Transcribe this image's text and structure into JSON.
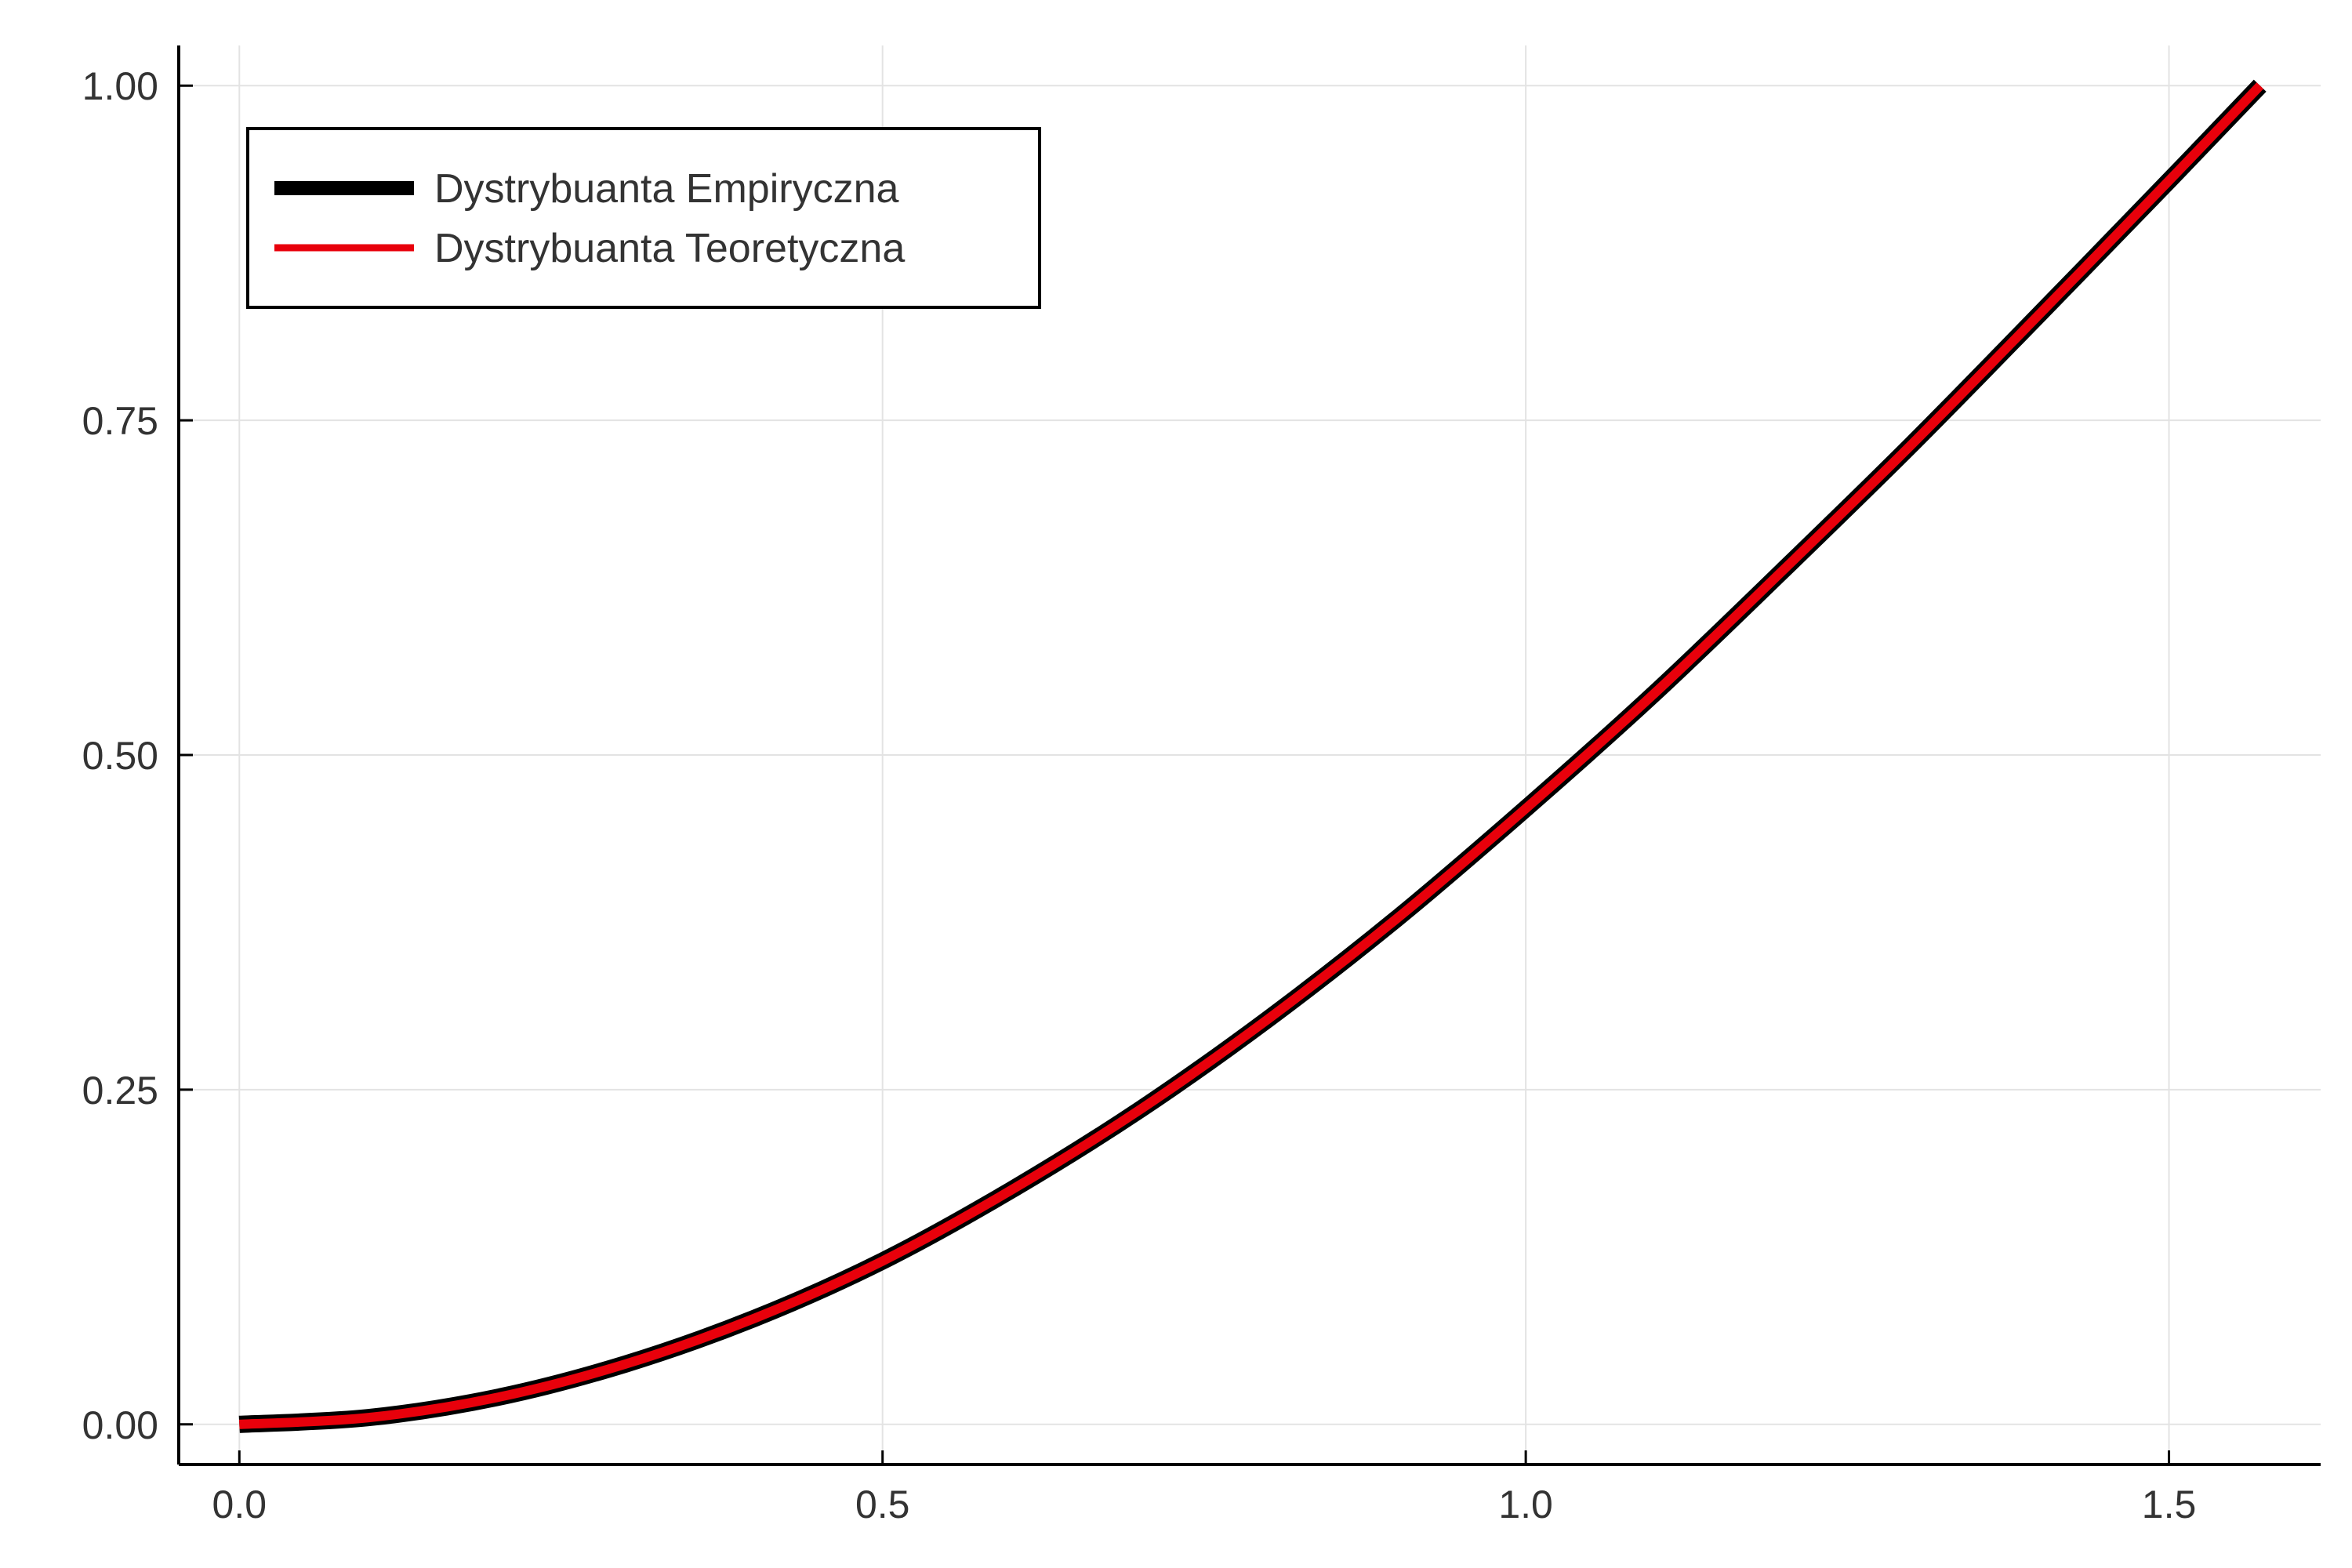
{
  "chart_data": {
    "type": "line",
    "title": "",
    "xlabel": "",
    "ylabel": "",
    "xlim": [
      -0.0471,
      1.6179
    ],
    "ylim": [
      -0.03,
      1.03
    ],
    "grid": true,
    "legend_position": "top-left",
    "x_ticks": [
      {
        "value": 0.0,
        "label": "0.0"
      },
      {
        "value": 0.5,
        "label": "0.5"
      },
      {
        "value": 1.0,
        "label": "1.0"
      },
      {
        "value": 1.5,
        "label": "1.5"
      }
    ],
    "y_ticks": [
      {
        "value": 0.0,
        "label": "0.00"
      },
      {
        "value": 0.25,
        "label": "0.25"
      },
      {
        "value": 0.5,
        "label": "0.50"
      },
      {
        "value": 0.75,
        "label": "0.75"
      },
      {
        "value": 1.0,
        "label": "1.00"
      }
    ],
    "x": [
      0.0,
      0.1,
      0.2,
      0.3,
      0.4,
      0.5,
      0.6,
      0.7,
      0.8,
      0.9,
      1.0,
      1.1,
      1.2,
      1.3,
      1.4,
      1.5,
      1.5708
    ],
    "series": [
      {
        "name": "Dystrybuanta Empiryczna",
        "color": "#000000",
        "values": [
          0.0,
          0.005,
          0.02,
          0.045,
          0.079,
          0.122,
          0.175,
          0.235,
          0.303,
          0.378,
          0.46,
          0.546,
          0.638,
          0.732,
          0.83,
          0.929,
          1.0
        ]
      },
      {
        "name": "Dystrybuanta Teoretyczna",
        "color": "#e8000b",
        "values": [
          0.0,
          0.005,
          0.02,
          0.045,
          0.079,
          0.122,
          0.175,
          0.235,
          0.303,
          0.378,
          0.46,
          0.546,
          0.638,
          0.732,
          0.83,
          0.929,
          1.0
        ]
      }
    ]
  }
}
